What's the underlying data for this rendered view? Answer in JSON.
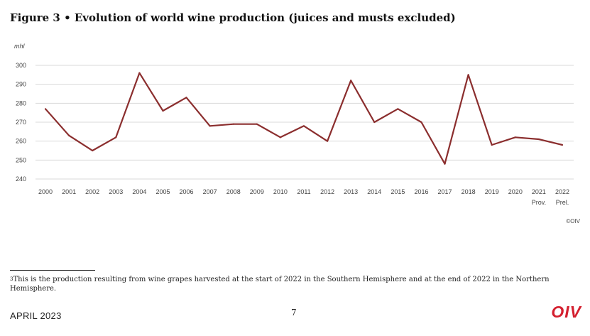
{
  "figure": {
    "title": "Figure 3 • Evolution of world wine production (juices and musts excluded)",
    "copyright": "©OIV"
  },
  "chart_data": {
    "type": "line",
    "title": "Figure 3 • Evolution of world wine production (juices and musts excluded)",
    "ylabel": "mhl",
    "ylim": [
      240,
      300
    ],
    "yticks": [
      300,
      290,
      280,
      270,
      260,
      250,
      240
    ],
    "grid": true,
    "x": [
      "2000",
      "2001",
      "2002",
      "2003",
      "2004",
      "2005",
      "2006",
      "2007",
      "2008",
      "2009",
      "2010",
      "2011",
      "2012",
      "2013",
      "2014",
      "2015",
      "2016",
      "2017",
      "2018",
      "2019",
      "2020",
      "2021",
      "2022"
    ],
    "x_sublabels": {
      "2021": "Prov.",
      "2022": "Prel."
    },
    "series": [
      {
        "values": [
          277,
          263,
          255,
          262,
          296,
          276,
          283,
          268,
          269,
          269,
          262,
          268,
          260,
          292,
          270,
          277,
          270,
          248,
          295,
          258,
          262,
          261,
          258
        ]
      }
    ],
    "line_color": "#8b2e2e"
  },
  "footnote": {
    "marker": "3",
    "text": "This is the production resulting from wine grapes harvested at the start of 2022 in the Southern Hemisphere and at the end of 2022 in the Northern Hemisphere."
  },
  "footer": {
    "date": "APRIL 2023",
    "page": "7",
    "logo": "OIV"
  }
}
